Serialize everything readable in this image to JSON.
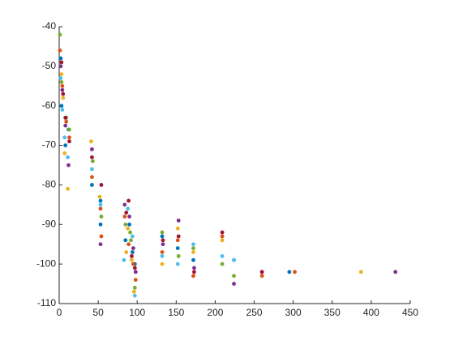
{
  "chart_data": {
    "type": "scatter",
    "xlim": [
      0,
      450
    ],
    "xticks": [
      0,
      50,
      100,
      150,
      200,
      250,
      300,
      350,
      400,
      450
    ],
    "ylim": [
      -110,
      -40
    ],
    "yticks": [
      -110,
      -100,
      -90,
      -80,
      -70,
      -60,
      -50,
      -40
    ],
    "series": [
      {
        "color": "#0072BD",
        "x": [
          2,
          3,
          8,
          12,
          42,
          53,
          53,
          85,
          90,
          94,
          97,
          132,
          152,
          172,
          224,
          295
        ],
        "values": [
          -48,
          -60,
          -70,
          -66,
          -80,
          -84,
          -90,
          -94,
          -90,
          -97,
          -100,
          -93,
          -96,
          -99,
          -99,
          -102
        ]
      },
      {
        "color": "#D95319",
        "x": [
          1,
          4,
          9,
          13,
          42,
          53,
          54,
          84,
          89,
          95,
          98,
          132,
          152,
          172,
          209,
          260,
          302
        ],
        "values": [
          -46,
          -55,
          -64,
          -68,
          -78,
          -86,
          -93,
          -88,
          -95,
          -100,
          -104,
          -97,
          -94,
          -103,
          -93,
          -103,
          -102
        ]
      },
      {
        "color": "#EDB120",
        "x": [
          3,
          5,
          7,
          11,
          41,
          52,
          86,
          88,
          93,
          96,
          132,
          152,
          172,
          209,
          387
        ],
        "values": [
          -52,
          -58,
          -72,
          -81,
          -69,
          -83,
          -97,
          -91,
          -99,
          -107,
          -100,
          -91,
          -97,
          -94,
          -102
        ]
      },
      {
        "color": "#7E2F8E",
        "x": [
          2,
          4,
          8,
          12,
          42,
          53,
          84,
          90,
          95,
          98,
          133,
          153,
          173,
          224,
          260,
          431
        ],
        "values": [
          -50,
          -56,
          -65,
          -75,
          -71,
          -95,
          -85,
          -88,
          -96,
          -102,
          -95,
          -89,
          -101,
          -105,
          -102,
          -102
        ]
      },
      {
        "color": "#77AC30",
        "x": [
          1,
          3,
          9,
          13,
          43,
          54,
          85,
          91,
          92,
          97,
          132,
          153,
          172,
          209,
          224
        ],
        "values": [
          -42,
          -54,
          -63,
          -66,
          -74,
          -88,
          -90,
          -92,
          -94,
          -106,
          -92,
          -98,
          -96,
          -100,
          -103
        ]
      },
      {
        "color": "#4DBEEE",
        "x": [
          2,
          4,
          7,
          11,
          42,
          53,
          83,
          88,
          94,
          97,
          132,
          152,
          172,
          209,
          224
        ],
        "values": [
          -53,
          -61,
          -68,
          -73,
          -76,
          -85,
          -99,
          -86,
          -93,
          -108,
          -98,
          -100,
          -95,
          -98,
          -99
        ]
      },
      {
        "color": "#A2142F",
        "x": [
          3,
          5,
          8,
          13,
          42,
          54,
          86,
          89,
          93,
          97,
          133,
          153,
          173,
          209,
          260
        ],
        "values": [
          -49,
          -57,
          -63,
          -69,
          -73,
          -80,
          -87,
          -84,
          -98,
          -101,
          -94,
          -93,
          -102,
          -92,
          -102
        ]
      }
    ]
  }
}
